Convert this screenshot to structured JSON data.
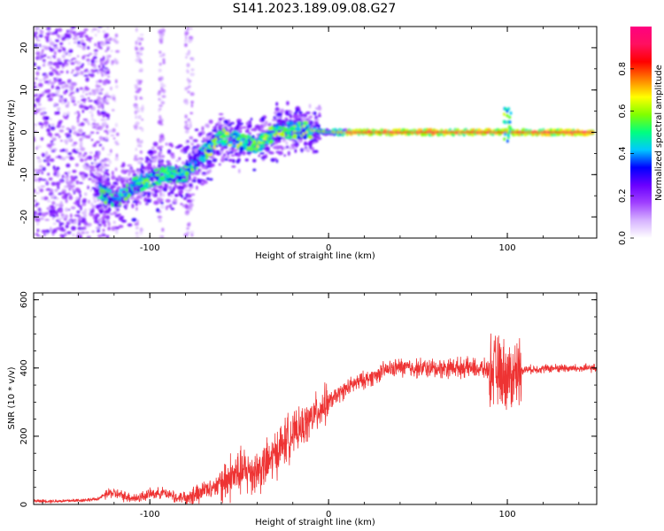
{
  "title": "S141.2023.189.09.08.G27",
  "colors": {
    "snr_line": "#ee3333",
    "colormap": [
      "#ffffff",
      "#d6b3ff",
      "#a040ff",
      "#6a00ff",
      "#0000ff",
      "#00c8ff",
      "#00ff80",
      "#80ff00",
      "#ffff00",
      "#ff8000",
      "#ff0000",
      "#ff1060",
      "#ff0080"
    ]
  },
  "chart_data": [
    {
      "type": "heatmap",
      "xlabel": "Height of straight line (km)",
      "ylabel": "Frequency (Hz)",
      "xlim": [
        -165,
        150
      ],
      "ylim": [
        -25,
        25
      ],
      "x_ticks": [
        "-100",
        "0",
        "100"
      ],
      "x_tick_values": [
        -100,
        0,
        100
      ],
      "y_ticks": [
        "-20",
        "-10",
        "0",
        "10",
        "20"
      ],
      "y_tick_values": [
        -20,
        -10,
        0,
        10,
        20
      ],
      "ridge": {
        "x": [
          -128,
          -120,
          -110,
          -100,
          -90,
          -80,
          -70,
          -60,
          -50,
          -40,
          -30,
          -20,
          -10,
          0,
          50,
          100,
          148
        ],
        "y": [
          -14,
          -16,
          -13,
          -11,
          -10,
          -10,
          -5,
          -1,
          -2,
          -3,
          0,
          0.5,
          0.5,
          0,
          0,
          0,
          0
        ]
      },
      "colorbar": {
        "label": "Normalized spectral amplitude",
        "ticks": [
          "0.0",
          "0.2",
          "0.4",
          "0.6",
          "0.8"
        ],
        "tick_values": [
          0.0,
          0.2,
          0.4,
          0.6,
          0.8
        ],
        "range": [
          0,
          1
        ]
      }
    },
    {
      "type": "line",
      "xlabel": "Height of straight line (km)",
      "ylabel": "SNR (10 * v/v)",
      "xlim": [
        -165,
        150
      ],
      "ylim": [
        0,
        620
      ],
      "x_ticks": [
        "-100",
        "0",
        "100"
      ],
      "x_tick_values": [
        -100,
        0,
        100
      ],
      "y_ticks": [
        "0",
        "200",
        "400",
        "600"
      ],
      "y_tick_values": [
        0,
        200,
        400,
        600
      ],
      "series": [
        {
          "x": [
            -165,
            -150,
            -140,
            -130,
            -122,
            -115,
            -108,
            -100,
            -92,
            -85,
            -78,
            -70,
            -62,
            -55,
            -48,
            -40,
            -34,
            -28,
            -22,
            -16,
            -10,
            -5,
            0,
            5,
            10,
            15,
            20,
            25,
            30,
            35,
            40,
            45,
            50,
            60,
            70,
            80,
            90,
            95,
            100,
            103,
            106,
            110,
            120,
            130,
            140,
            150
          ],
          "y": [
            10,
            10,
            12,
            15,
            35,
            25,
            18,
            30,
            35,
            20,
            25,
            40,
            60,
            80,
            95,
            100,
            120,
            160,
            200,
            220,
            250,
            280,
            300,
            320,
            340,
            355,
            365,
            375,
            390,
            398,
            402,
            400,
            400,
            398,
            402,
            400,
            395,
            390,
            380,
            375,
            395,
            395,
            398,
            400,
            398,
            400
          ]
        }
      ]
    }
  ]
}
